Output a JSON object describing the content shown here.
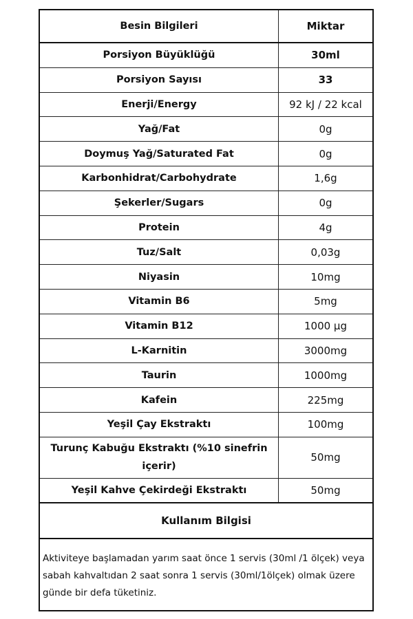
{
  "header": {
    "name": "Besin Bilgileri",
    "amount": "Miktar"
  },
  "rows": [
    {
      "name": "Porsiyon Büyüklüğü",
      "value": "30ml"
    },
    {
      "name": "Porsiyon Sayısı",
      "value": "33"
    },
    {
      "name": "Enerji/Energy",
      "value": "92 kJ / 22 kcal"
    },
    {
      "name": "Yağ/Fat",
      "value": "0g"
    },
    {
      "name": "Doymuş Yağ/Saturated Fat",
      "value": "0g"
    },
    {
      "name": "Karbonhidrat/Carbohydrate",
      "value": "1,6g"
    },
    {
      "name": "Şekerler/Sugars",
      "value": "0g"
    },
    {
      "name": "Protein",
      "value": "4g"
    },
    {
      "name": "Tuz/Salt",
      "value": "0,03g"
    },
    {
      "name": "Niyasin",
      "value": "10mg"
    },
    {
      "name": "Vitamin B6",
      "value": "5mg"
    },
    {
      "name": "Vitamin B12",
      "value": "1000 µg"
    },
    {
      "name": "L-Karnitin",
      "value": "3000mg"
    },
    {
      "name": "Taurin",
      "value": "1000mg"
    },
    {
      "name": "Kafein",
      "value": "225mg"
    },
    {
      "name": "Yeşil Çay Ekstraktı",
      "value": "100mg"
    },
    {
      "name": "Turunç Kabuğu Ekstraktı (%10 sinefrin içerir)",
      "value": "50mg"
    },
    {
      "name": "Yeşil Kahve Çekirdeği Ekstraktı",
      "value": "50mg"
    }
  ],
  "usage": {
    "title": "Kullanım Bilgisi",
    "text": "Aktiviteye başlamadan yarım saat önce 1 servis (30ml /1 ölçek) veya sabah kahvaltıdan 2 saat sonra 1 servis (30ml/1ölçek) olmak üzere günde bir defa tüketiniz."
  }
}
